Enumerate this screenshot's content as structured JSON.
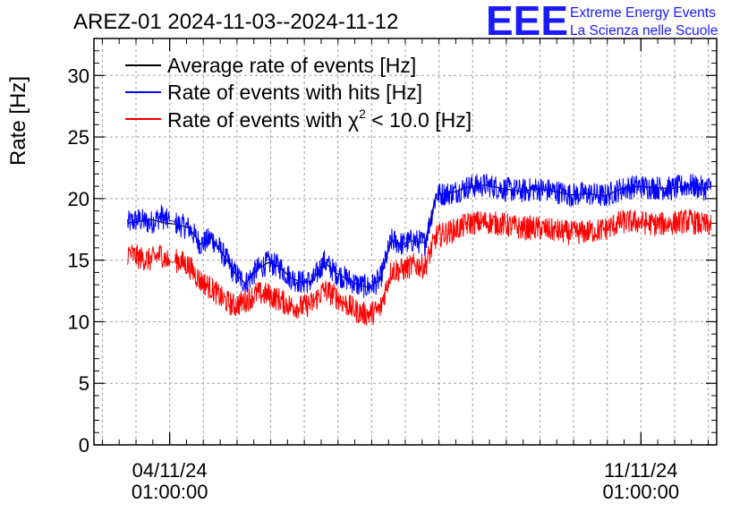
{
  "header": {
    "title": "AREZ-01 2024-11-03--2024-11-12",
    "logo_text": "EEE",
    "logo_line1": "Extreme Energy Events",
    "logo_line2": "La Scienza nelle Scuole"
  },
  "colors": {
    "average": "#000000",
    "hits": "#0000ff",
    "chi2": "#ff0000",
    "logo": "#1a1aff",
    "grid": "#a0a0a0"
  },
  "chart_data": {
    "type": "line",
    "title": "AREZ-01 2024-11-03--2024-11-12",
    "xlabel": "",
    "ylabel": "Rate [Hz]",
    "ylim": [
      0,
      33
    ],
    "yticks": [
      0,
      5,
      10,
      15,
      20,
      25,
      30
    ],
    "xlim": [
      "2024-11-02 22:00",
      "2024-11-12 04:00"
    ],
    "xticks": [
      {
        "x": "2024-11-04 01:00:00",
        "line1": "04/11/24",
        "line2": "01:00:00"
      },
      {
        "x": "2024-11-11 01:00:00",
        "line1": "11/11/24",
        "line2": "01:00:00"
      }
    ],
    "grid": true,
    "legend_position": "top-left",
    "series": [
      {
        "name": "Average rate of events [Hz]",
        "color": "#000000",
        "noise": 0.0,
        "x": [
          "2024-11-03 10:00",
          "2024-11-03 18:00",
          "2024-11-04 00:00",
          "2024-11-04 04:00",
          "2024-11-04 08:00",
          "2024-11-04 12:00",
          "2024-11-04 16:00",
          "2024-11-04 20:00",
          "2024-11-05 00:00",
          "2024-11-05 04:00",
          "2024-11-05 08:00",
          "2024-11-05 12:00",
          "2024-11-05 16:00",
          "2024-11-05 20:00",
          "2024-11-06 00:00",
          "2024-11-06 04:00",
          "2024-11-06 08:00",
          "2024-11-06 12:00",
          "2024-11-06 16:00",
          "2024-11-06 20:00",
          "2024-11-07 00:00",
          "2024-11-07 04:00",
          "2024-11-07 08:00",
          "2024-11-07 12:00",
          "2024-11-07 16:00",
          "2024-11-07 20:00",
          "2024-11-08 00:00",
          "2024-11-08 06:00",
          "2024-11-08 12:00",
          "2024-11-08 18:00",
          "2024-11-09 00:00",
          "2024-11-09 06:00",
          "2024-11-09 12:00",
          "2024-11-09 18:00",
          "2024-11-10 00:00",
          "2024-11-10 06:00",
          "2024-11-10 12:00",
          "2024-11-10 18:00",
          "2024-11-11 00:00",
          "2024-11-11 06:00",
          "2024-11-11 12:00",
          "2024-11-11 18:00",
          "2024-11-12 00:00",
          "2024-11-12 02:00"
        ],
        "y": [
          18.0,
          18.3,
          18.0,
          17.9,
          17.6,
          16.3,
          16.8,
          15.5,
          14.0,
          13.1,
          14.2,
          14.8,
          14.5,
          13.6,
          13.2,
          13.3,
          14.9,
          14.0,
          13.5,
          13.0,
          12.8,
          13.4,
          16.6,
          16.3,
          16.6,
          16.4,
          20.3,
          20.5,
          21.0,
          21.1,
          20.8,
          20.6,
          20.8,
          20.6,
          20.3,
          20.4,
          20.2,
          20.8,
          21.0,
          20.9,
          20.8,
          21.1,
          20.8,
          21.0
        ]
      },
      {
        "name": "Rate of events with hits [Hz]",
        "color": "#0000ff",
        "noise": 1.0,
        "x": [
          "2024-11-03 10:00",
          "2024-11-03 14:00",
          "2024-11-03 18:00",
          "2024-11-03 22:00",
          "2024-11-04 00:00",
          "2024-11-04 02:00",
          "2024-11-04 04:00",
          "2024-11-04 08:00",
          "2024-11-04 12:00",
          "2024-11-04 16:00",
          "2024-11-04 20:00",
          "2024-11-05 00:00",
          "2024-11-05 04:00",
          "2024-11-05 08:00",
          "2024-11-05 12:00",
          "2024-11-05 16:00",
          "2024-11-05 20:00",
          "2024-11-06 00:00",
          "2024-11-06 04:00",
          "2024-11-06 08:00",
          "2024-11-06 12:00",
          "2024-11-06 16:00",
          "2024-11-06 20:00",
          "2024-11-07 00:00",
          "2024-11-07 04:00",
          "2024-11-07 08:00",
          "2024-11-07 12:00",
          "2024-11-07 16:00",
          "2024-11-07 20:00",
          "2024-11-08 00:00",
          "2024-11-08 06:00",
          "2024-11-08 12:00",
          "2024-11-08 18:00",
          "2024-11-09 00:00",
          "2024-11-09 06:00",
          "2024-11-09 12:00",
          "2024-11-09 18:00",
          "2024-11-10 00:00",
          "2024-11-10 06:00",
          "2024-11-10 12:00",
          "2024-11-10 18:00",
          "2024-11-11 00:00",
          "2024-11-11 06:00",
          "2024-11-11 12:00",
          "2024-11-11 18:00",
          "2024-11-12 00:00",
          "2024-11-12 02:00"
        ],
        "y": [
          18.0,
          18.3,
          18.0,
          18.6,
          18.2,
          18.2,
          17.9,
          17.6,
          16.3,
          16.8,
          15.5,
          14.0,
          13.1,
          14.2,
          14.8,
          14.5,
          13.6,
          13.2,
          13.3,
          14.9,
          14.0,
          13.5,
          13.0,
          12.8,
          13.4,
          16.6,
          16.3,
          16.6,
          16.4,
          20.3,
          20.5,
          21.0,
          21.1,
          20.8,
          20.6,
          20.8,
          20.6,
          20.3,
          20.4,
          20.2,
          20.8,
          21.0,
          20.9,
          20.8,
          21.1,
          20.8,
          21.0
        ]
      },
      {
        "name": "Rate of events with χ² < 10.0 [Hz]",
        "legend_base": "Rate of events with ",
        "legend_chi": "χ",
        "legend_sup": "2",
        "legend_tail": " < 10.0 [Hz]",
        "color": "#ff0000",
        "noise": 1.0,
        "x": [
          "2024-11-03 10:00",
          "2024-11-03 14:00",
          "2024-11-03 18:00",
          "2024-11-03 22:00",
          "2024-11-04 00:00",
          "2024-11-04 02:00",
          "2024-11-04 04:00",
          "2024-11-04 08:00",
          "2024-11-04 12:00",
          "2024-11-04 16:00",
          "2024-11-04 20:00",
          "2024-11-05 00:00",
          "2024-11-05 04:00",
          "2024-11-05 08:00",
          "2024-11-05 12:00",
          "2024-11-05 16:00",
          "2024-11-05 20:00",
          "2024-11-06 00:00",
          "2024-11-06 04:00",
          "2024-11-06 08:00",
          "2024-11-06 12:00",
          "2024-11-06 16:00",
          "2024-11-06 20:00",
          "2024-11-07 00:00",
          "2024-11-07 04:00",
          "2024-11-07 08:00",
          "2024-11-07 12:00",
          "2024-11-07 16:00",
          "2024-11-07 20:00",
          "2024-11-08 00:00",
          "2024-11-08 06:00",
          "2024-11-08 12:00",
          "2024-11-08 18:00",
          "2024-11-09 00:00",
          "2024-11-09 06:00",
          "2024-11-09 12:00",
          "2024-11-09 18:00",
          "2024-11-10 00:00",
          "2024-11-10 06:00",
          "2024-11-10 12:00",
          "2024-11-10 18:00",
          "2024-11-11 00:00",
          "2024-11-11 06:00",
          "2024-11-11 12:00",
          "2024-11-11 18:00",
          "2024-11-12 00:00",
          "2024-11-12 02:00"
        ],
        "y": [
          15.6,
          15.2,
          15.0,
          15.5,
          15.0,
          14.8,
          15.0,
          14.5,
          13.3,
          12.7,
          11.8,
          11.3,
          11.7,
          12.3,
          12.2,
          11.8,
          11.3,
          11.2,
          11.5,
          12.6,
          12.1,
          11.4,
          10.8,
          10.6,
          11.0,
          14.2,
          14.2,
          14.6,
          14.5,
          16.9,
          17.4,
          18.0,
          18.1,
          17.9,
          17.6,
          17.6,
          17.4,
          17.2,
          17.3,
          17.5,
          18.1,
          18.1,
          17.9,
          18.0,
          18.2,
          17.8,
          17.9
        ]
      }
    ]
  }
}
